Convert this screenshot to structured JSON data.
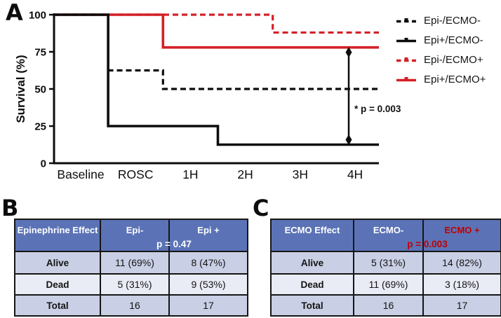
{
  "panels": {
    "a": "A",
    "b": "B",
    "c": "C"
  },
  "colors": {
    "curve_black": "#0d0d0d",
    "curve_red": "#d42027",
    "table_header_blue": "#5b73b6",
    "table_row_dark": "#c9cfe4",
    "table_row_light": "#e9ebf5",
    "table_accent_red": "#c00000"
  },
  "chart": {
    "y_axis_label": "Survival (%)",
    "y_ticks": [
      0,
      25,
      50,
      75,
      100
    ],
    "annotation_text": "* p = 0.003",
    "legend": [
      {
        "label": "Epi-/ECMO-",
        "color": "#0d0d0d",
        "dashed": true
      },
      {
        "label": "Epi+/ECMO-",
        "color": "#0d0d0d",
        "dashed": false
      },
      {
        "label": "Epi-/ECMO+",
        "color": "#d42027",
        "dashed": true
      },
      {
        "label": "Epi+/ECMO+",
        "color": "#d42027",
        "dashed": false
      }
    ]
  },
  "chart_data": {
    "type": "line",
    "subtype": "kaplan-meier-step",
    "title": "",
    "xlabel": "",
    "ylabel": "Survival (%)",
    "ylim": [
      0,
      100
    ],
    "grid": false,
    "legend_position": "right",
    "categories": [
      "Baseline",
      "ROSC",
      "1H",
      "2H",
      "3H",
      "4H"
    ],
    "series": [
      {
        "name": "Epi-/ECMO+",
        "color": "#d42027",
        "dashed": true,
        "values": [
          100,
          100,
          100,
          100,
          88,
          88
        ]
      },
      {
        "name": "Epi+/ECMO+",
        "color": "#d42027",
        "dashed": false,
        "values": [
          100,
          100,
          78,
          78,
          78,
          78
        ]
      },
      {
        "name": "Epi-/ECMO-",
        "color": "#0d0d0d",
        "dashed": true,
        "values": [
          100,
          62.5,
          50,
          50,
          50,
          50
        ]
      },
      {
        "name": "Epi+/ECMO-",
        "color": "#0d0d0d",
        "dashed": false,
        "values": [
          100,
          25,
          25,
          12.5,
          12.5,
          12.5
        ]
      }
    ],
    "annotation": {
      "text": "* p = 0.003",
      "at_x": "4H",
      "compares": [
        "Epi+/ECMO+",
        "Epi+/ECMO-"
      ]
    }
  },
  "tables": [
    {
      "name": "Epinephrine Effect",
      "header": [
        "Epinephrine Effect",
        "Epi-",
        "Epi +"
      ],
      "p_label": "p = 0.47",
      "rows": [
        {
          "label": "Alive",
          "cells": [
            "11 (69%)",
            "8 (47%)"
          ]
        },
        {
          "label": "Dead",
          "cells": [
            "5 (31%)",
            "9 (53%)"
          ]
        },
        {
          "label": "Total",
          "cells": [
            "16",
            "17"
          ]
        }
      ]
    },
    {
      "name": "ECMO Effect",
      "header": [
        "ECMO Effect",
        "ECMO-",
        "ECMO +"
      ],
      "p_label": "p = 0.003",
      "rows": [
        {
          "label": "Alive",
          "cells": [
            "5 (31%)",
            "14 (82%)"
          ]
        },
        {
          "label": "Dead",
          "cells": [
            "11 (69%)",
            "3 (18%)"
          ]
        },
        {
          "label": "Total",
          "cells": [
            "16",
            "17"
          ]
        }
      ]
    }
  ]
}
